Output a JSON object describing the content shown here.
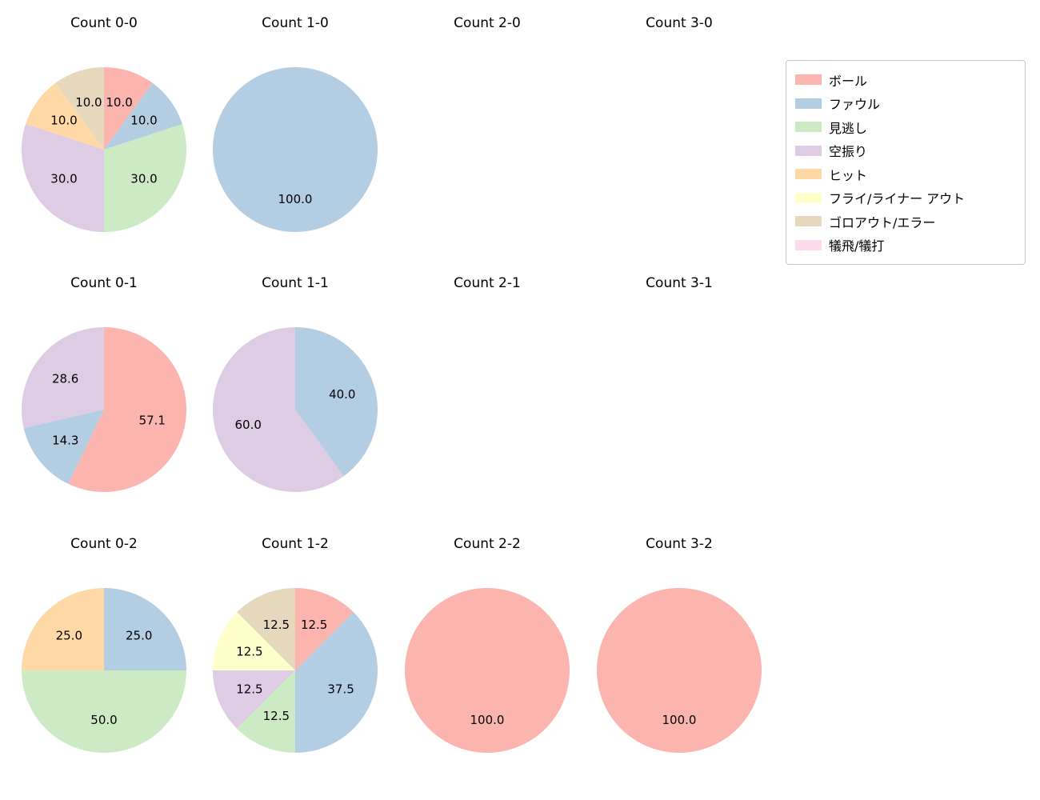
{
  "figure": {
    "background": "#ffffff"
  },
  "legend": {
    "items": [
      {
        "label": "ボール",
        "color": "#fbb4ae"
      },
      {
        "label": "ファウル",
        "color": "#b3cde3"
      },
      {
        "label": "見逃し",
        "color": "#ccebc5"
      },
      {
        "label": "空振り",
        "color": "#decbe4"
      },
      {
        "label": "ヒット",
        "color": "#fed9a6"
      },
      {
        "label": "フライ/ライナー アウト",
        "color": "#ffffcc"
      },
      {
        "label": "ゴロアウト/エラー",
        "color": "#e5d8bd"
      },
      {
        "label": "犠飛/犠打",
        "color": "#fddaec"
      }
    ]
  },
  "chart_data": [
    {
      "type": "pie",
      "title": "Count 0-0",
      "start_angle_deg": 90,
      "clockwise": true,
      "units": "percent",
      "slices": [
        {
          "category": "ボール",
          "value": 10.0,
          "pct_label": "10.0",
          "color": "#fbb4ae"
        },
        {
          "category": "ファウル",
          "value": 10.0,
          "pct_label": "10.0",
          "color": "#b3cde3"
        },
        {
          "category": "見逃し",
          "value": 30.0,
          "pct_label": "30.0",
          "color": "#ccebc5"
        },
        {
          "category": "空振り",
          "value": 30.0,
          "pct_label": "30.0",
          "color": "#decbe4"
        },
        {
          "category": "ヒット",
          "value": 10.0,
          "pct_label": "10.0",
          "color": "#fed9a6"
        },
        {
          "category": "ゴロアウト/エラー",
          "value": 10.0,
          "pct_label": "10.0",
          "color": "#e5d8bd"
        }
      ]
    },
    {
      "type": "pie",
      "title": "Count 1-0",
      "start_angle_deg": 90,
      "clockwise": true,
      "units": "percent",
      "slices": [
        {
          "category": "ファウル",
          "value": 100.0,
          "pct_label": "100.0",
          "color": "#b3cde3"
        }
      ]
    },
    {
      "type": "pie",
      "title": "Count 2-0",
      "start_angle_deg": 90,
      "clockwise": true,
      "units": "percent",
      "slices": []
    },
    {
      "type": "pie",
      "title": "Count 3-0",
      "start_angle_deg": 90,
      "clockwise": true,
      "units": "percent",
      "slices": []
    },
    {
      "type": "pie",
      "title": "Count 0-1",
      "start_angle_deg": 90,
      "clockwise": true,
      "units": "percent",
      "slices": [
        {
          "category": "ボール",
          "value": 57.1,
          "pct_label": "57.1",
          "color": "#fbb4ae"
        },
        {
          "category": "ファウル",
          "value": 14.3,
          "pct_label": "14.3",
          "color": "#b3cde3"
        },
        {
          "category": "空振り",
          "value": 28.6,
          "pct_label": "28.6",
          "color": "#decbe4"
        }
      ]
    },
    {
      "type": "pie",
      "title": "Count 1-1",
      "start_angle_deg": 90,
      "clockwise": true,
      "units": "percent",
      "slices": [
        {
          "category": "ファウル",
          "value": 40.0,
          "pct_label": "40.0",
          "color": "#b3cde3"
        },
        {
          "category": "空振り",
          "value": 60.0,
          "pct_label": "60.0",
          "color": "#decbe4"
        }
      ]
    },
    {
      "type": "pie",
      "title": "Count 2-1",
      "start_angle_deg": 90,
      "clockwise": true,
      "units": "percent",
      "slices": []
    },
    {
      "type": "pie",
      "title": "Count 3-1",
      "start_angle_deg": 90,
      "clockwise": true,
      "units": "percent",
      "slices": []
    },
    {
      "type": "pie",
      "title": "Count 0-2",
      "start_angle_deg": 90,
      "clockwise": true,
      "units": "percent",
      "slices": [
        {
          "category": "ファウル",
          "value": 25.0,
          "pct_label": "25.0",
          "color": "#b3cde3"
        },
        {
          "category": "見逃し",
          "value": 50.0,
          "pct_label": "50.0",
          "color": "#ccebc5"
        },
        {
          "category": "ヒット",
          "value": 25.0,
          "pct_label": "25.0",
          "color": "#fed9a6"
        }
      ]
    },
    {
      "type": "pie",
      "title": "Count 1-2",
      "start_angle_deg": 90,
      "clockwise": true,
      "units": "percent",
      "slices": [
        {
          "category": "ボール",
          "value": 12.5,
          "pct_label": "12.5",
          "color": "#fbb4ae"
        },
        {
          "category": "ファウル",
          "value": 37.5,
          "pct_label": "37.5",
          "color": "#b3cde3"
        },
        {
          "category": "見逃し",
          "value": 12.5,
          "pct_label": "12.5",
          "color": "#ccebc5"
        },
        {
          "category": "空振り",
          "value": 12.5,
          "pct_label": "12.5",
          "color": "#decbe4"
        },
        {
          "category": "フライ/ライナー アウト",
          "value": 12.5,
          "pct_label": "12.5",
          "color": "#ffffcc"
        },
        {
          "category": "ゴロアウト/エラー",
          "value": 12.5,
          "pct_label": "12.5",
          "color": "#e5d8bd"
        }
      ]
    },
    {
      "type": "pie",
      "title": "Count 2-2",
      "start_angle_deg": 90,
      "clockwise": true,
      "units": "percent",
      "slices": [
        {
          "category": "ボール",
          "value": 100.0,
          "pct_label": "100.0",
          "color": "#fbb4ae"
        }
      ]
    },
    {
      "type": "pie",
      "title": "Count 3-2",
      "start_angle_deg": 90,
      "clockwise": true,
      "units": "percent",
      "slices": [
        {
          "category": "ボール",
          "value": 100.0,
          "pct_label": "100.0",
          "color": "#fbb4ae"
        }
      ]
    }
  ]
}
